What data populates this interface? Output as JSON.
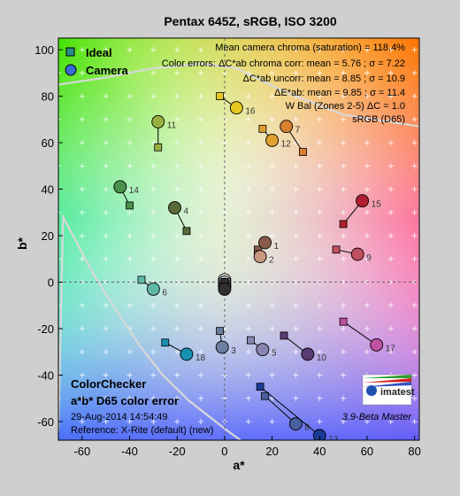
{
  "chart_data": {
    "type": "scatter",
    "title": "Pentax 645Z, sRGB, ISO 3200",
    "xlabel": "a*",
    "ylabel": "b*",
    "xlim": [
      -70,
      82
    ],
    "ylim": [
      -68,
      105
    ],
    "xticks": [
      -60,
      -40,
      -20,
      0,
      20,
      40,
      60,
      80
    ],
    "yticks": [
      -60,
      -40,
      -20,
      0,
      20,
      40,
      60,
      80,
      100
    ],
    "legend": {
      "placement": "top-left",
      "entries": [
        "Ideal",
        "Camera"
      ]
    },
    "info_lines": [
      "Mean camera chroma (saturation) = 118.4%",
      "Color errors: ΔC*ab chroma corr:  mean = 5.76 ;  σ = 7.22",
      "ΔC*ab uncorr:  mean = 8.85 ;  σ = 10.9",
      "ΔE*ab:  mean = 9.85 ;  σ = 11.4",
      "W Bal (Zones 2-5) ΔC = 1.0",
      "sRGB (D65)"
    ],
    "patches": [
      {
        "n": 1,
        "ideal": [
          14,
          14
        ],
        "camera": [
          17,
          17
        ],
        "color": "#8a5a4a",
        "show_label": true
      },
      {
        "n": 2,
        "ideal": [
          14,
          12
        ],
        "camera": [
          15,
          11
        ],
        "color": "#c89880",
        "show_label": true
      },
      {
        "n": 3,
        "ideal": [
          -2,
          -21
        ],
        "camera": [
          -1,
          -28
        ],
        "color": "#6a7ea0",
        "show_label": true
      },
      {
        "n": 4,
        "ideal": [
          -16,
          22
        ],
        "camera": [
          -21,
          32
        ],
        "color": "#5a6a3a",
        "show_label": true
      },
      {
        "n": 5,
        "ideal": [
          11,
          -25
        ],
        "camera": [
          16,
          -29
        ],
        "color": "#8a84b0",
        "show_label": true
      },
      {
        "n": 6,
        "ideal": [
          -35,
          1
        ],
        "camera": [
          -30,
          -3
        ],
        "color": "#60b8a8",
        "show_label": true
      },
      {
        "n": 7,
        "ideal": [
          33,
          56
        ],
        "camera": [
          26,
          67
        ],
        "color": "#d88030",
        "show_label": true
      },
      {
        "n": 8,
        "ideal": [
          17,
          -49
        ],
        "camera": [
          30,
          -61
        ],
        "color": "#4860a0",
        "show_label": true
      },
      {
        "n": 9,
        "ideal": [
          47,
          14
        ],
        "camera": [
          56,
          12
        ],
        "color": "#c05060",
        "show_label": true
      },
      {
        "n": 10,
        "ideal": [
          25,
          -23
        ],
        "camera": [
          35,
          -31
        ],
        "color": "#5a3a70",
        "show_label": true
      },
      {
        "n": 11,
        "ideal": [
          -28,
          58
        ],
        "camera": [
          -28,
          69
        ],
        "color": "#98b040",
        "show_label": true
      },
      {
        "n": 12,
        "ideal": [
          16,
          66
        ],
        "camera": [
          20,
          61
        ],
        "color": "#e0a030",
        "show_label": true
      },
      {
        "n": 13,
        "ideal": [
          15,
          -45
        ],
        "camera": [
          40,
          -66
        ],
        "color": "#1a3a98",
        "show_label": true
      },
      {
        "n": 14,
        "ideal": [
          -40,
          33
        ],
        "camera": [
          -44,
          41
        ],
        "color": "#4a9048",
        "show_label": true
      },
      {
        "n": 15,
        "ideal": [
          50,
          25
        ],
        "camera": [
          58,
          35
        ],
        "color": "#b02030",
        "show_label": true
      },
      {
        "n": 16,
        "ideal": [
          -2,
          80
        ],
        "camera": [
          5,
          75
        ],
        "color": "#e8c820",
        "show_label": true
      },
      {
        "n": 17,
        "ideal": [
          50,
          -17
        ],
        "camera": [
          64,
          -27
        ],
        "color": "#c050a0",
        "show_label": true
      },
      {
        "n": 18,
        "ideal": [
          -25,
          -26
        ],
        "camera": [
          -16,
          -31
        ],
        "color": "#1890b0",
        "show_label": true
      },
      {
        "n": 19,
        "ideal": [
          0,
          0
        ],
        "camera": [
          0,
          1
        ],
        "color": "#f0f0f0",
        "show_label": false
      },
      {
        "n": 20,
        "ideal": [
          0,
          0
        ],
        "camera": [
          0,
          0
        ],
        "color": "#c8c8c8",
        "show_label": false
      },
      {
        "n": 21,
        "ideal": [
          0,
          0
        ],
        "camera": [
          0,
          -1
        ],
        "color": "#a0a0a0",
        "show_label": false
      },
      {
        "n": 22,
        "ideal": [
          0,
          0
        ],
        "camera": [
          0,
          -2
        ],
        "color": "#787878",
        "show_label": false
      },
      {
        "n": 23,
        "ideal": [
          0,
          0
        ],
        "camera": [
          0,
          -2
        ],
        "color": "#505050",
        "show_label": false
      },
      {
        "n": 24,
        "ideal": [
          0,
          0
        ],
        "camera": [
          0,
          -3
        ],
        "color": "#303030",
        "show_label": false
      }
    ],
    "gamut_curve": [
      [
        -70,
        -64
      ],
      [
        -68,
        28
      ],
      [
        -55,
        3
      ],
      [
        -47,
        -10
      ],
      [
        -36,
        -27
      ],
      [
        -26,
        -40
      ],
      [
        -15,
        -51
      ],
      [
        0,
        -63
      ],
      [
        8,
        -69
      ]
    ],
    "gamut_curve_top": [
      [
        -70,
        85
      ],
      [
        -50,
        88
      ],
      [
        -30,
        92
      ],
      [
        -10,
        94
      ],
      [
        5,
        92
      ],
      [
        25,
        82
      ],
      [
        50,
        72
      ],
      [
        82,
        67
      ]
    ],
    "colorchecker_title": "ColorChecker",
    "subtitle": "a*b* D65 color error",
    "date": "29-Aug-2014 14:54:49",
    "reference": "Reference: X-Rite (default) (new)",
    "logo": "imatest",
    "version": "3.9-Beta  Master"
  }
}
